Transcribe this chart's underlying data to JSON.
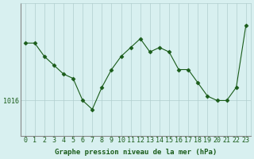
{
  "x": [
    0,
    1,
    2,
    3,
    4,
    5,
    6,
    7,
    8,
    9,
    10,
    11,
    12,
    13,
    14,
    15,
    16,
    17,
    18,
    19,
    20,
    21,
    22,
    23
  ],
  "y": [
    1022.5,
    1022.5,
    1021.0,
    1020.0,
    1019.0,
    1018.5,
    1016.0,
    1015.0,
    1017.5,
    1019.5,
    1021.0,
    1022.0,
    1023.0,
    1021.5,
    1022.0,
    1021.5,
    1019.5,
    1019.5,
    1018.0,
    1016.5,
    1016.0,
    1016.0,
    1017.5,
    1024.5
  ],
  "line_color": "#1a5c1a",
  "marker_color": "#1a5c1a",
  "bg_color": "#d8f0f0",
  "plot_bg_color": "#d8f0f0",
  "grid_color": "#b0cece",
  "axis_color": "#1a5c1a",
  "xlabel": "Graphe pression niveau de la mer (hPa)",
  "ytick_label": "1016",
  "ytick_value": 1016,
  "ylim_min": 1012,
  "ylim_max": 1027,
  "tick_fontsize": 6
}
